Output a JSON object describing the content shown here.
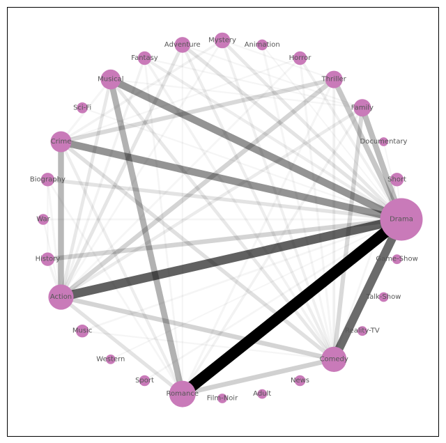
{
  "node_color": "#c97ab9",
  "edge_color": "#000000",
  "nodes": [
    {
      "id": "Drama",
      "weight": 10.0
    },
    {
      "id": "Short",
      "weight": 0.6
    },
    {
      "id": "Documentary",
      "weight": 0.15
    },
    {
      "id": "Family",
      "weight": 1.2
    },
    {
      "id": "Thriller",
      "weight": 1.2
    },
    {
      "id": "Horror",
      "weight": 0.6
    },
    {
      "id": "Animation",
      "weight": 0.3
    },
    {
      "id": "Mystery",
      "weight": 0.9
    },
    {
      "id": "Adventure",
      "weight": 0.9
    },
    {
      "id": "Fantasy",
      "weight": 0.6
    },
    {
      "id": "Musical",
      "weight": 1.7
    },
    {
      "id": "Sci-Fi",
      "weight": 0.3
    },
    {
      "id": "Crime",
      "weight": 1.9
    },
    {
      "id": "Biography",
      "weight": 0.6
    },
    {
      "id": "War",
      "weight": 0.3
    },
    {
      "id": "History",
      "weight": 0.6
    },
    {
      "id": "Action",
      "weight": 3.0
    },
    {
      "id": "Music",
      "weight": 0.5
    },
    {
      "id": "Western",
      "weight": 0.2
    },
    {
      "id": "Sport",
      "weight": 0.3
    },
    {
      "id": "Romance",
      "weight": 3.4
    },
    {
      "id": "Film-Noir",
      "weight": 0.2
    },
    {
      "id": "Adult",
      "weight": 0.2
    },
    {
      "id": "News",
      "weight": 0.3
    },
    {
      "id": "Comedy",
      "weight": 3.0
    },
    {
      "id": "Reality-TV",
      "weight": 0.2
    },
    {
      "id": "Talk-Show",
      "weight": 0.2
    },
    {
      "id": "Game-Show",
      "weight": 0.2
    }
  ],
  "edges": [
    {
      "source": "Romance",
      "target": "Drama",
      "weight": 1.0
    },
    {
      "source": "Action",
      "target": "Drama",
      "weight": 0.62
    },
    {
      "source": "Comedy",
      "target": "Drama",
      "weight": 0.58
    },
    {
      "source": "Crime",
      "target": "Drama",
      "weight": 0.42
    },
    {
      "source": "Musical",
      "target": "Drama",
      "weight": 0.42
    },
    {
      "source": "Romance",
      "target": "Musical",
      "weight": 0.3
    },
    {
      "source": "Action",
      "target": "Crime",
      "weight": 0.28
    },
    {
      "source": "Family",
      "target": "Drama",
      "weight": 0.26
    },
    {
      "source": "Thriller",
      "target": "Drama",
      "weight": 0.22
    },
    {
      "source": "Romance",
      "target": "Comedy",
      "weight": 0.18
    },
    {
      "source": "Action",
      "target": "Comedy",
      "weight": 0.17
    },
    {
      "source": "History",
      "target": "Drama",
      "weight": 0.17
    },
    {
      "source": "Action",
      "target": "Thriller",
      "weight": 0.17
    },
    {
      "source": "Crime",
      "target": "Thriller",
      "weight": 0.15
    },
    {
      "source": "Comedy",
      "target": "Family",
      "weight": 0.15
    },
    {
      "source": "Comedy",
      "target": "Crime",
      "weight": 0.12
    },
    {
      "source": "Action",
      "target": "Romance",
      "weight": 0.11
    },
    {
      "source": "Adventure",
      "target": "Drama",
      "weight": 0.11
    },
    {
      "source": "Biography",
      "target": "Drama",
      "weight": 0.11
    },
    {
      "source": "Action",
      "target": "Adventure",
      "weight": 0.1
    },
    {
      "source": "Comedy",
      "target": "Musical",
      "weight": 0.09
    },
    {
      "source": "Mystery",
      "target": "Drama",
      "weight": 0.09
    },
    {
      "source": "Action",
      "target": "Musical",
      "weight": 0.09
    },
    {
      "source": "Action",
      "target": "Family",
      "weight": 0.08
    },
    {
      "source": "Comedy",
      "target": "Adventure",
      "weight": 0.07
    },
    {
      "source": "Romance",
      "target": "Crime",
      "weight": 0.07
    },
    {
      "source": "Fantasy",
      "target": "Drama",
      "weight": 0.07
    },
    {
      "source": "Comedy",
      "target": "Mystery",
      "weight": 0.06
    },
    {
      "source": "Horror",
      "target": "Drama",
      "weight": 0.06
    },
    {
      "source": "Comedy",
      "target": "Thriller",
      "weight": 0.06
    },
    {
      "source": "Action",
      "target": "Fantasy",
      "weight": 0.05
    },
    {
      "source": "Crime",
      "target": "Mystery",
      "weight": 0.05
    },
    {
      "source": "Comedy",
      "target": "Fantasy",
      "weight": 0.05
    },
    {
      "source": "Action",
      "target": "History",
      "weight": 0.05
    },
    {
      "source": "Romance",
      "target": "Family",
      "weight": 0.05
    },
    {
      "source": "Romance",
      "target": "Thriller",
      "weight": 0.04
    },
    {
      "source": "Comedy",
      "target": "Horror",
      "weight": 0.04
    },
    {
      "source": "Comedy",
      "target": "Animation",
      "weight": 0.04
    },
    {
      "source": "Action",
      "target": "Biography",
      "weight": 0.04
    },
    {
      "source": "Romance",
      "target": "Biography",
      "weight": 0.03
    },
    {
      "source": "Crime",
      "target": "Musical",
      "weight": 0.04
    },
    {
      "source": "Sport",
      "target": "Drama",
      "weight": 0.03
    },
    {
      "source": "Music",
      "target": "Drama",
      "weight": 0.03
    },
    {
      "source": "War",
      "target": "Drama",
      "weight": 0.03
    },
    {
      "source": "Action",
      "target": "Mystery",
      "weight": 0.03
    },
    {
      "source": "Action",
      "target": "Horror",
      "weight": 0.03
    },
    {
      "source": "Romance",
      "target": "Fantasy",
      "weight": 0.03
    },
    {
      "source": "Comedy",
      "target": "Short",
      "weight": 0.03
    },
    {
      "source": "History",
      "target": "Biography",
      "weight": 0.02
    },
    {
      "source": "Crime",
      "target": "Horror",
      "weight": 0.02
    },
    {
      "source": "Musical",
      "target": "Family",
      "weight": 0.02
    },
    {
      "source": "Romance",
      "target": "Adventure",
      "weight": 0.02
    },
    {
      "source": "Adventure",
      "target": "Family",
      "weight": 0.02
    },
    {
      "source": "Fantasy",
      "target": "Family",
      "weight": 0.02
    },
    {
      "source": "Mystery",
      "target": "Thriller",
      "weight": 0.02
    },
    {
      "source": "Comedy",
      "target": "Music",
      "weight": 0.02
    },
    {
      "source": "Action",
      "target": "War",
      "weight": 0.02
    },
    {
      "source": "Sci-Fi",
      "target": "Drama",
      "weight": 0.02
    },
    {
      "source": "Animation",
      "target": "Drama",
      "weight": 0.015
    },
    {
      "source": "Documentary",
      "target": "Drama",
      "weight": 0.015
    },
    {
      "source": "Western",
      "target": "Drama",
      "weight": 0.015
    },
    {
      "source": "Short",
      "target": "Drama",
      "weight": 0.015
    }
  ]
}
